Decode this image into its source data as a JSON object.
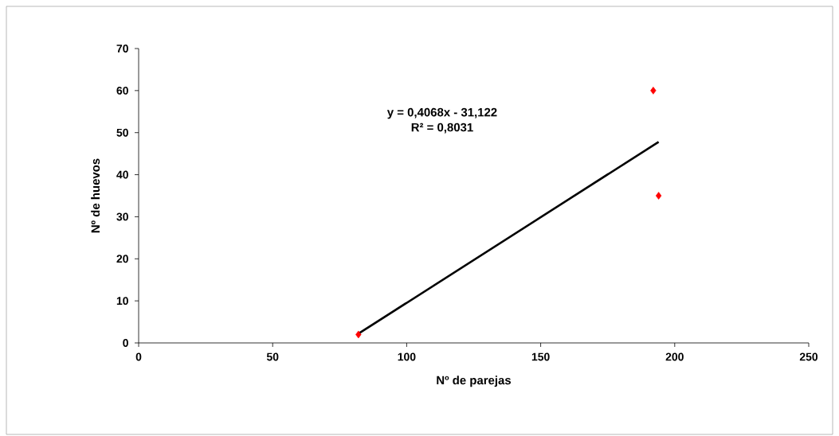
{
  "chart_data": {
    "type": "scatter",
    "xlabel": "Nº de parejas",
    "ylabel": "Nº de huevos",
    "xlim": [
      0,
      250
    ],
    "ylim": [
      0,
      70
    ],
    "xticks": [
      0,
      50,
      100,
      150,
      200,
      250
    ],
    "yticks": [
      0,
      10,
      20,
      30,
      40,
      50,
      60,
      70
    ],
    "grid": false,
    "marker": "diamond",
    "series": [
      {
        "color": "#ff0000",
        "x": [
          82,
          192,
          194
        ],
        "values": [
          2,
          60,
          35
        ]
      },
      {
        "type": "line",
        "color": "#000000",
        "marker": "none",
        "line_style": "solid",
        "x": [
          82,
          194
        ],
        "values": [
          2.2,
          47.8
        ]
      }
    ],
    "annotations": [
      "y = 0,4068x - 31,122",
      "R² = 0,8031"
    ]
  }
}
